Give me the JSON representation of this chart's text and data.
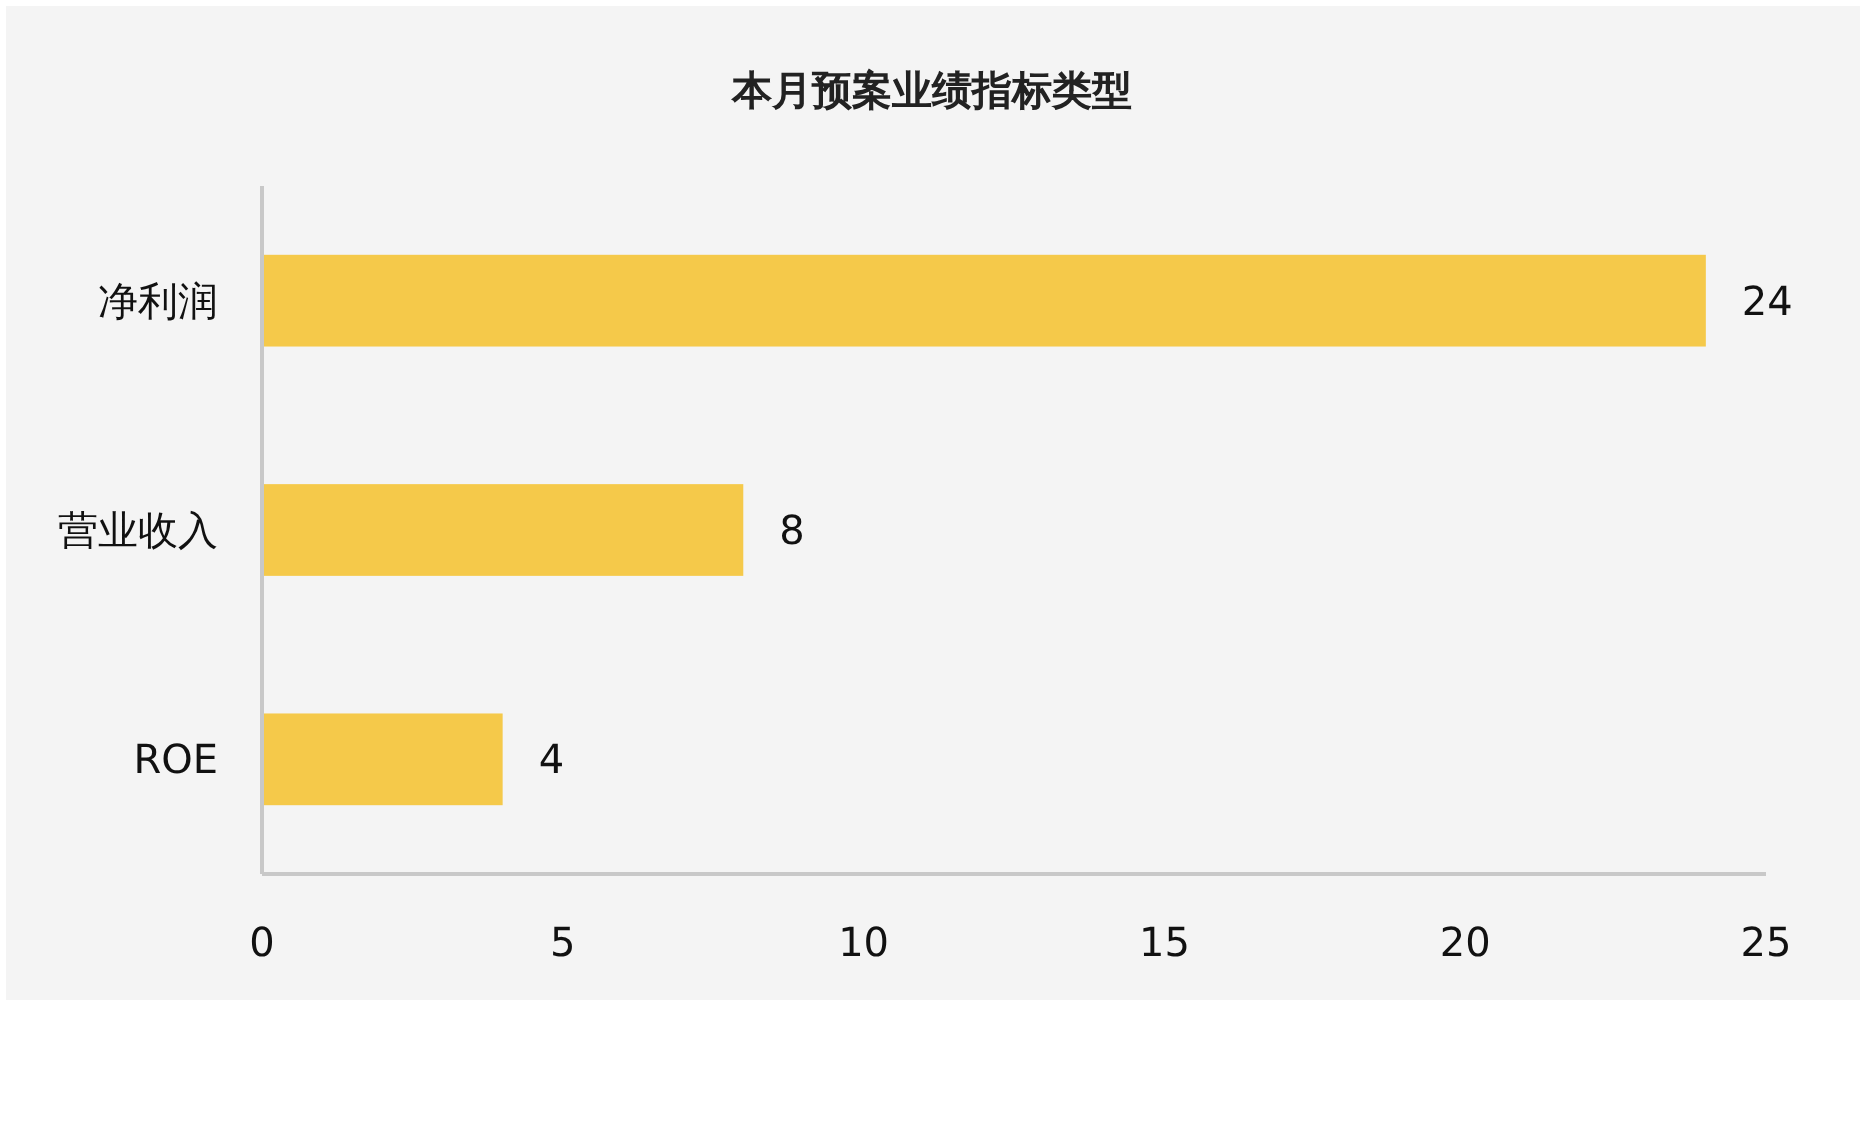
{
  "chart_data": {
    "type": "bar",
    "orientation": "horizontal",
    "title": "本月预案业绩指标类型",
    "categories": [
      "净利润",
      "营业收入",
      "ROE"
    ],
    "values": [
      24,
      8,
      4
    ],
    "color": "#f5c94a",
    "xlim": [
      0,
      25
    ],
    "xticks": [
      0,
      5,
      10,
      15,
      20,
      25
    ],
    "data_labels": true
  }
}
